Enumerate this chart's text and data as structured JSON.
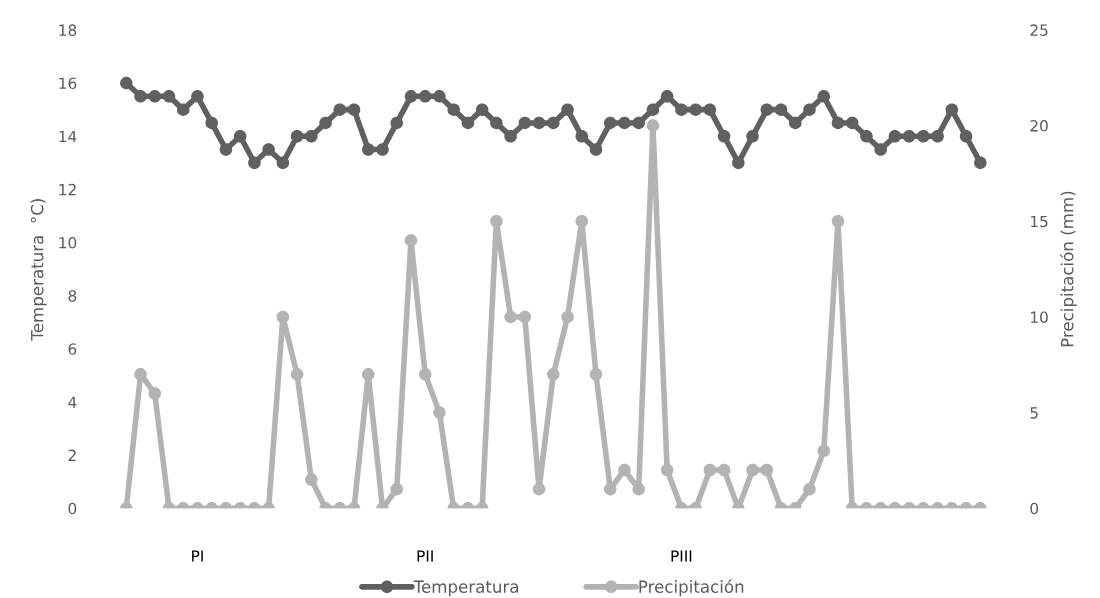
{
  "chart_data": {
    "type": "line",
    "ylabel": "Temperatura  °C)",
    "y2label": "Precipitación (mm)",
    "categories": [
      null,
      null,
      null,
      null,
      null,
      "PI",
      null,
      null,
      null,
      null,
      null,
      null,
      null,
      null,
      null,
      null,
      null,
      null,
      null,
      null,
      null,
      "PII",
      null,
      null,
      null,
      null,
      null,
      null,
      null,
      null,
      null,
      null,
      null,
      null,
      null,
      null,
      null,
      null,
      null,
      "PIII",
      null,
      null,
      null,
      null,
      null,
      null,
      null,
      null,
      null,
      null,
      null,
      null,
      null,
      null,
      null,
      null,
      null,
      null,
      null,
      null,
      null
    ],
    "series": [
      {
        "name": "Temperatura",
        "color": "#606060",
        "values": [
          16,
          15.5,
          15.5,
          15.5,
          15,
          15.5,
          14.5,
          13.5,
          14,
          13,
          13.5,
          13,
          14,
          14,
          14.5,
          15,
          15,
          13.5,
          13.5,
          14.5,
          15.5,
          15.5,
          15.5,
          15,
          14.5,
          15,
          14.5,
          14,
          14.5,
          14.5,
          14.5,
          15,
          14,
          13.5,
          14.5,
          14.5,
          14.5,
          15,
          15.5,
          15,
          15,
          15,
          14,
          13,
          14,
          15,
          15,
          14.5,
          15,
          15.5,
          14.5,
          14.5,
          14,
          13.5,
          14,
          14,
          14,
          14,
          15,
          14,
          13
        ]
      },
      {
        "name": "Precipitación",
        "color": "#b3b3b3",
        "axis": "y2",
        "values": [
          0,
          7,
          6,
          0,
          0,
          0,
          0,
          0,
          0,
          0,
          0,
          10,
          7,
          1.5,
          0,
          0,
          0,
          7,
          0,
          1,
          14,
          7,
          5,
          0,
          0,
          0,
          15,
          10,
          10,
          1,
          7,
          10,
          15,
          7,
          1,
          2,
          1,
          20,
          2,
          0,
          0,
          2,
          2,
          0,
          2,
          2,
          0,
          0,
          1,
          3,
          15,
          0,
          0,
          0,
          0,
          0,
          0,
          0,
          0,
          0,
          0
        ]
      }
    ],
    "ylim": [
      0,
      18
    ],
    "yticks": [
      0,
      2,
      4,
      6,
      8,
      10,
      12,
      14,
      16,
      18
    ],
    "y2lim": [
      0,
      25
    ],
    "y2ticks": [
      0,
      5,
      10,
      15,
      20,
      25
    ],
    "grid": false,
    "legend": "bottom",
    "marker": "circle",
    "line_style": "solid"
  }
}
